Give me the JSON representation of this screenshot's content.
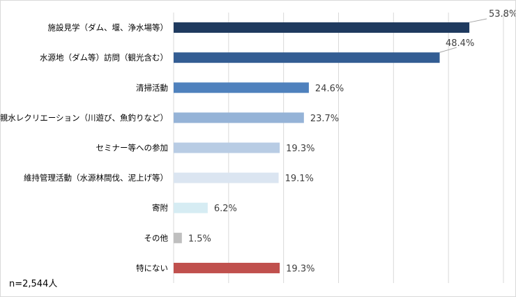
{
  "chart_data": {
    "type": "bar",
    "orientation": "horizontal",
    "categories": [
      "施設見学（ダム、堰、浄水場等）",
      "水源地（ダム等）訪問（観光含む）",
      "清掃活動",
      "親水レクリエーション（川遊び、魚釣りなど）",
      "セミナー等への参加",
      "維持管理活動（水源林間伐、泥上げ等）",
      "寄附",
      "その他",
      "特にない"
    ],
    "values": [
      53.8,
      48.4,
      24.6,
      23.7,
      19.3,
      19.1,
      6.2,
      1.5,
      19.3
    ],
    "value_labels": [
      "53.8%",
      "48.4%",
      "24.6%",
      "23.7%",
      "19.3%",
      "19.1%",
      "6.2%",
      "1.5%",
      "19.3%"
    ],
    "colors": [
      "#1f3a5f",
      "#335d93",
      "#4f81bd",
      "#95b3d7",
      "#b8cce4",
      "#dbe5f1",
      "#d6ecf3",
      "#bfbfbf",
      "#c0504d"
    ],
    "xlim": [
      0,
      60
    ],
    "grid": true,
    "gridline_color": "#d9d9d9",
    "note": "n=2,544人"
  }
}
